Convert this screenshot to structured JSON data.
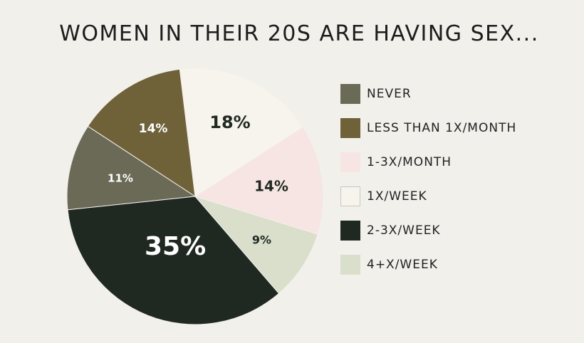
{
  "title": "WOMEN IN THEIR 20S ARE HAVING SEX...",
  "chart_data": {
    "type": "pie",
    "title": "WOMEN IN THEIR 20S ARE HAVING SEX...",
    "legend_position": "right",
    "slices": [
      {
        "label": "NEVER",
        "value": 11,
        "display": "11%",
        "color": "#6b6a56"
      },
      {
        "label": "LESS THAN 1X/MONTH",
        "value": 14,
        "display": "14%",
        "color": "#6f6239"
      },
      {
        "label": "1X/WEEK",
        "value": 18,
        "display": "18%",
        "color": "#f7f4ee"
      },
      {
        "label": "1-3X/MONTH",
        "value": 14,
        "display": "14%",
        "color": "#f6e5e3"
      },
      {
        "label": "4+X/WEEK",
        "value": 9,
        "display": "9%",
        "color": "#d9dfca"
      },
      {
        "label": "2-3X/WEEK",
        "value": 35,
        "display": "35%",
        "color": "#1f2922"
      }
    ],
    "legend": [
      {
        "label": "NEVER",
        "color": "#6b6a56"
      },
      {
        "label": "LESS THAN 1X/MONTH",
        "color": "#6f6239"
      },
      {
        "label": "1-3X/MONTH",
        "color": "#f6e5e3"
      },
      {
        "label": "1X/WEEK",
        "color": "#f7f4ee"
      },
      {
        "label": "2-3X/WEEK",
        "color": "#1f2922"
      },
      {
        "label": "4+X/WEEK",
        "color": "#d9dfca"
      }
    ]
  }
}
